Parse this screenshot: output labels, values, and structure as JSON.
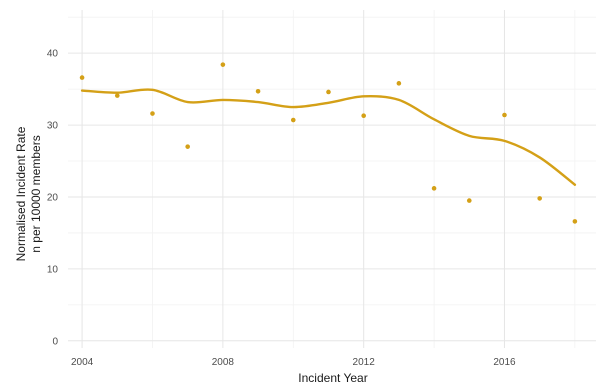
{
  "chart_data": {
    "type": "scatter",
    "title": "",
    "xlabel": "Incident Year",
    "ylabel_lines": [
      "Normalised Incident Rate",
      "n per 10000 members"
    ],
    "xlim": [
      2003.6,
      2018.6
    ],
    "ylim": [
      -1,
      46
    ],
    "x_ticks": [
      2004,
      2008,
      2012,
      2016
    ],
    "x_tick_labels": [
      "2004",
      "2008",
      "2012",
      "2016"
    ],
    "y_ticks": [
      0,
      10,
      20,
      30,
      40
    ],
    "y_tick_labels": [
      "0",
      "10",
      "20",
      "30",
      "40"
    ],
    "grid": true,
    "legend": "none",
    "series": [
      {
        "kind": "points",
        "color": "#D4A017",
        "x": [
          2004,
          2005,
          2006,
          2007,
          2008,
          2009,
          2010,
          2011,
          2012,
          2013,
          2014,
          2015,
          2016,
          2017,
          2018
        ],
        "y": [
          36.6,
          34.1,
          31.6,
          27.0,
          38.4,
          34.7,
          30.7,
          34.6,
          31.3,
          35.8,
          21.2,
          19.5,
          31.4,
          19.8,
          16.6
        ]
      },
      {
        "kind": "smooth-line",
        "color": "#D4A017",
        "x": [
          2004,
          2005,
          2006,
          2007,
          2008,
          2009,
          2010,
          2011,
          2012,
          2013,
          2014,
          2015,
          2016,
          2017,
          2018
        ],
        "y": [
          34.8,
          34.5,
          34.9,
          33.2,
          33.5,
          33.2,
          32.5,
          33.1,
          34.0,
          33.5,
          30.8,
          28.5,
          27.8,
          25.5,
          21.7
        ]
      }
    ]
  }
}
